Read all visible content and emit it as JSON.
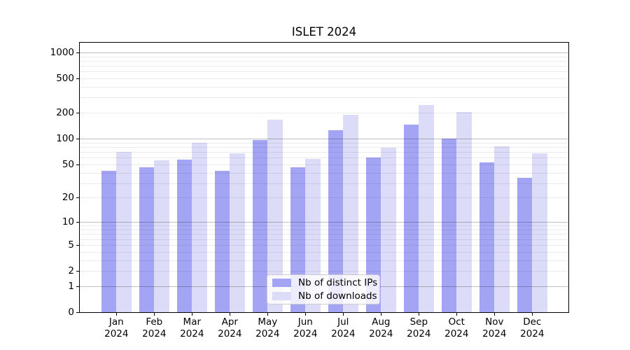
{
  "chart_data": {
    "type": "bar",
    "title": "ISLET 2024",
    "categories": [
      "Jan 2024",
      "Feb 2024",
      "Mar 2024",
      "Apr 2024",
      "May 2024",
      "Jun 2024",
      "Jul 2024",
      "Aug 2024",
      "Sep 2024",
      "Oct 2024",
      "Nov 2024",
      "Dec 2024"
    ],
    "series": [
      {
        "name": "Nb of distinct IPs",
        "color": "#a4a4f4",
        "values": [
          42,
          46,
          57,
          42,
          97,
          46,
          125,
          60,
          145,
          100,
          53,
          35
        ]
      },
      {
        "name": "Nb of downloads",
        "color": "#dcdcf8",
        "values": [
          70,
          56,
          89,
          67,
          165,
          58,
          190,
          78,
          245,
          205,
          82,
          67
        ]
      }
    ],
    "xlabel": "",
    "ylabel": "",
    "yscale": "log1p",
    "ylim": [
      0,
      1300
    ],
    "yticks": [
      0,
      1,
      2,
      5,
      10,
      20,
      50,
      100,
      200,
      500,
      1000
    ],
    "y_major_gridlines": [
      1,
      10,
      100,
      1000
    ],
    "grid": true,
    "legend_position": "lower center"
  }
}
